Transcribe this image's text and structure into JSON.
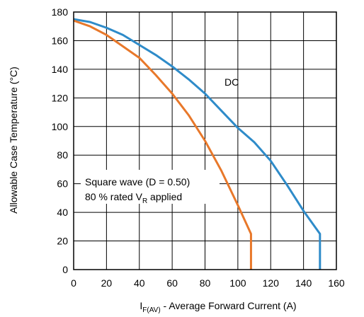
{
  "chart_data": {
    "type": "line",
    "xlabel_main": "I",
    "xlabel_sub": "F(AV)",
    "xlabel_rest": " - Average Forward Current (A)",
    "ylabel": "Allowable Case Temperature (°C)",
    "xlim": [
      0,
      160
    ],
    "ylim": [
      0,
      180
    ],
    "xticks": [
      0,
      20,
      40,
      60,
      80,
      100,
      120,
      140,
      160
    ],
    "yticks": [
      0,
      20,
      40,
      60,
      80,
      100,
      120,
      140,
      160,
      180
    ],
    "grid": true,
    "series": [
      {
        "name": "DC",
        "color": "#2e8bc9",
        "points": [
          [
            0,
            175
          ],
          [
            10,
            173
          ],
          [
            20,
            169
          ],
          [
            30,
            164
          ],
          [
            40,
            157
          ],
          [
            50,
            150
          ],
          [
            60,
            142
          ],
          [
            70,
            133
          ],
          [
            80,
            123
          ],
          [
            90,
            111
          ],
          [
            100,
            99
          ],
          [
            110,
            89
          ],
          [
            120,
            76
          ],
          [
            130,
            59
          ],
          [
            140,
            41
          ],
          [
            150,
            25
          ],
          [
            150,
            0
          ]
        ]
      },
      {
        "name": "Square wave (D = 0.50)",
        "color": "#e8782a",
        "points": [
          [
            0,
            174
          ],
          [
            10,
            170
          ],
          [
            20,
            164
          ],
          [
            30,
            156
          ],
          [
            40,
            148
          ],
          [
            50,
            136
          ],
          [
            60,
            123
          ],
          [
            70,
            108
          ],
          [
            80,
            90
          ],
          [
            90,
            69
          ],
          [
            100,
            45
          ],
          [
            108,
            25
          ],
          [
            108,
            0
          ]
        ]
      }
    ],
    "annotations": {
      "dc_label": "DC",
      "square_line1": "Square wave (D = 0.50)",
      "square_line2_pre": "80 % rated V",
      "square_line2_sub": "R",
      "square_line2_post": " applied"
    }
  }
}
